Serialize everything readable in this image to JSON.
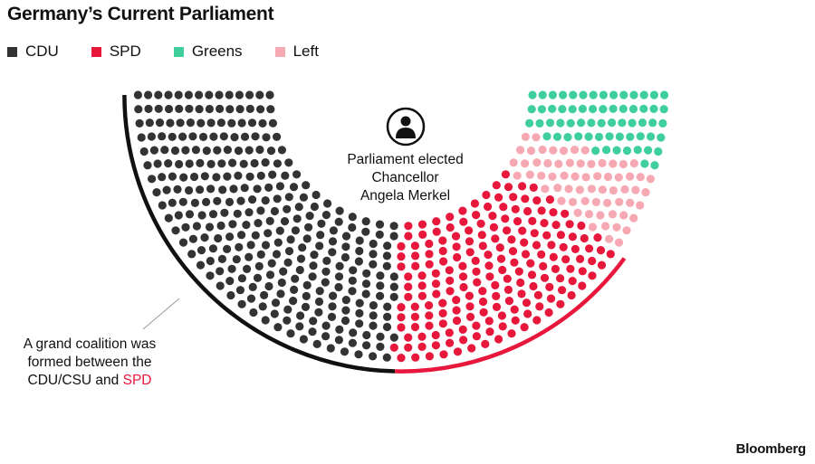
{
  "title": "Germany’s Current Parliament",
  "legend": [
    {
      "label": "CDU",
      "color": "#333333"
    },
    {
      "label": "SPD",
      "color": "#e8173c"
    },
    {
      "label": "Greens",
      "color": "#3ecf9c"
    },
    {
      "label": "Left",
      "color": "#f6a9b3"
    }
  ],
  "annotations": {
    "coalition_lines": [
      "A grand coalition was",
      "formed between the"
    ],
    "coalition_last_prefix": "CDU/CSU and ",
    "coalition_highlight": "SPD",
    "chancellor_lines": [
      "Parliament elected",
      "Chancellor",
      "Angela Merkel"
    ]
  },
  "icons": {
    "chancellor": "person-icon"
  },
  "brand": "Bloomberg",
  "chart_data": {
    "type": "parliament",
    "series": [
      {
        "name": "CDU",
        "seats": 311,
        "color": "#333333"
      },
      {
        "name": "SPD",
        "seats": 193,
        "color": "#e8173c"
      },
      {
        "name": "Left",
        "seats": 64,
        "color": "#f6a9b3"
      },
      {
        "name": "Greens",
        "seats": 63,
        "color": "#3ecf9c"
      }
    ],
    "total_seats": 631,
    "coalition": [
      "CDU",
      "SPD"
    ]
  }
}
